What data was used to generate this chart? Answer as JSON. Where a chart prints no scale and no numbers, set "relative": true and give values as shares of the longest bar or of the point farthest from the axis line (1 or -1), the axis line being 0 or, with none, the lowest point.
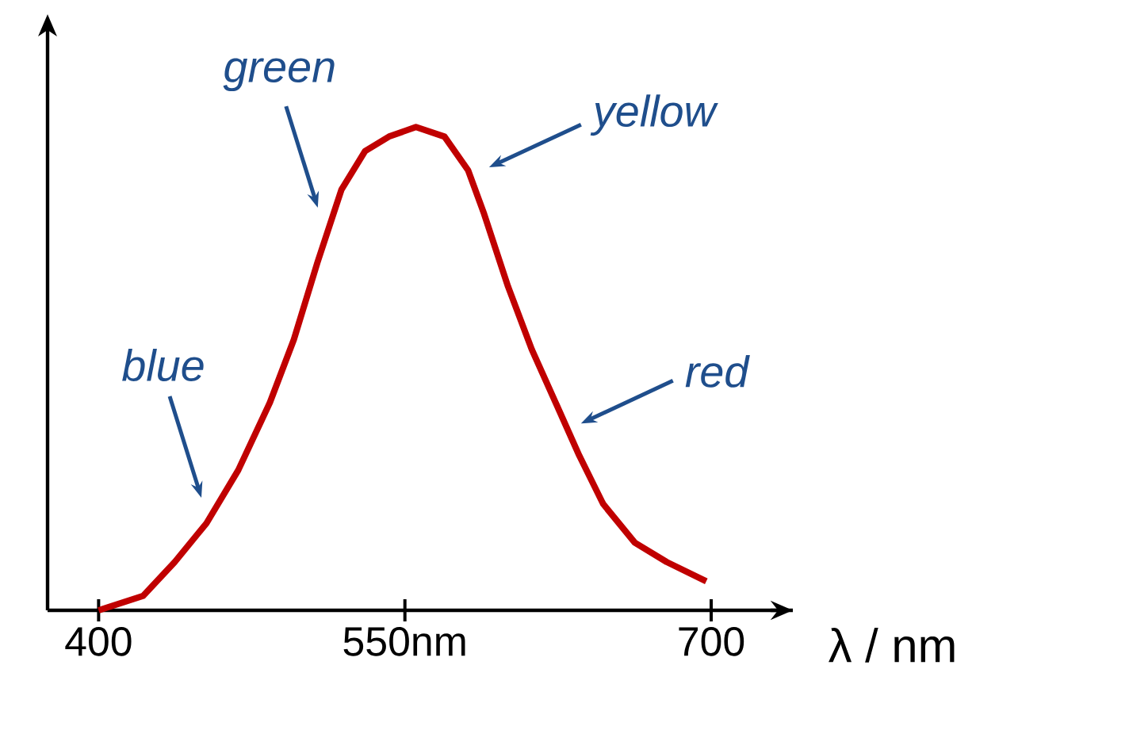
{
  "chart_data": {
    "type": "line",
    "relative": true,
    "color": "#c00000",
    "xlabel": "λ / nm",
    "x": [
      400,
      421.8,
      437.3,
      452.8,
      468.4,
      483.9,
      495.6,
      507.2,
      518.9,
      530.5,
      542.2,
      555.4,
      569.4,
      581.0,
      588.8,
      600.5,
      612.1,
      623.8,
      635.4,
      647.1,
      662.6,
      678.2,
      697.6
    ],
    "values": [
      0,
      0.03,
      0.1,
      0.18,
      0.29,
      0.43,
      0.56,
      0.72,
      0.87,
      0.95,
      0.98,
      1,
      0.98,
      0.91,
      0.82,
      0.67,
      0.54,
      0.43,
      0.32,
      0.22,
      0.14,
      0.1,
      0.06
    ],
    "xlim": [
      375,
      740
    ],
    "xticks": [
      400,
      {
        "value": 550,
        "label": "550nm"
      },
      700
    ],
    "annotations": [
      {
        "text": "blue",
        "x": 455,
        "y": 0.2
      },
      {
        "text": "green",
        "x": 512,
        "y": 0.8
      },
      {
        "text": "yellow",
        "x": 585,
        "y": 0.9
      },
      {
        "text": "red",
        "x": 630,
        "y": 0.37
      }
    ]
  }
}
